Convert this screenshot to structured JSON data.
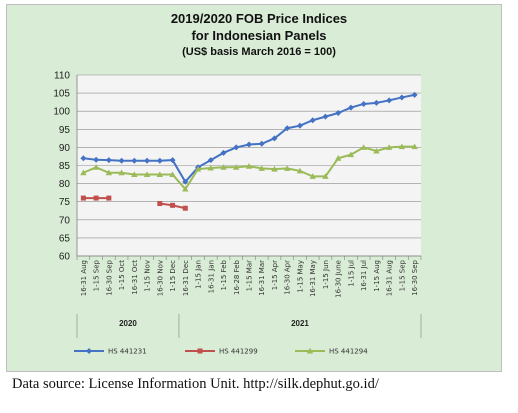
{
  "chart_data": {
    "type": "line",
    "title": "2019/2020 FOB Price Indices",
    "subtitle": "for Indonesian Panels",
    "note": "(US$ basis March 2016 = 100)",
    "ylim": [
      60,
      110
    ],
    "yticks": [
      60,
      65,
      70,
      75,
      80,
      85,
      90,
      95,
      100,
      105,
      110
    ],
    "grid": true,
    "legend_position": "bottom",
    "categories": [
      "16-31 Aug",
      "1-15 Sep",
      "16-30 Sep",
      "1-15 Oct",
      "16-31 Oct",
      "1-15 Nov",
      "16-30 Nov",
      "1-15 Dec",
      "16-31 Dec",
      "1-15 Jan",
      "16-31 Jan",
      "1-15 Feb",
      "16-28 Feb",
      "1-15 Mar",
      "16-31 Mar",
      "1-15 Apr",
      "16-30 Apr",
      "1-15 May",
      "16-31 May",
      "1-15 Jun",
      "16-30 June",
      "1-15 Jul",
      "16-31 Jul",
      "1-15 Aug",
      "16-31 Aug",
      "1-15 Sep",
      "16-30 Sep"
    ],
    "groups": [
      {
        "label": "2020",
        "start": 0,
        "end": 7
      },
      {
        "label": "2021",
        "start": 8,
        "end": 26
      }
    ],
    "series": [
      {
        "name": "HS 441231",
        "color": "#4472c4",
        "marker": "diamond",
        "values": [
          87,
          86.6,
          86.5,
          86.3,
          86.3,
          86.3,
          86.3,
          86.5,
          80.5,
          84.5,
          86.5,
          88.5,
          90,
          90.8,
          91,
          92.5,
          95.3,
          96,
          97.5,
          98.5,
          99.5,
          101,
          102,
          102.3,
          103,
          103.8,
          104.5
        ]
      },
      {
        "name": "HS 441299",
        "color": "#c0504d",
        "marker": "square",
        "values": [
          76,
          76,
          76,
          null,
          null,
          null,
          74.5,
          74,
          73.2,
          null,
          null,
          null,
          null,
          null,
          null,
          null,
          null,
          null,
          null,
          null,
          null,
          null,
          null,
          null,
          null,
          null,
          null
        ]
      },
      {
        "name": "HS 441294",
        "color": "#9bbb59",
        "marker": "triangle",
        "values": [
          83,
          84.5,
          83,
          83,
          82.5,
          82.5,
          82.5,
          82.5,
          78.5,
          84,
          84.3,
          84.5,
          84.5,
          84.8,
          84.2,
          84,
          84.2,
          83.5,
          82,
          82,
          87,
          88,
          90,
          89,
          90,
          90.2,
          90.2
        ]
      }
    ]
  },
  "source": "Data source: License Information Unit. http://silk.dephut.go.id/"
}
